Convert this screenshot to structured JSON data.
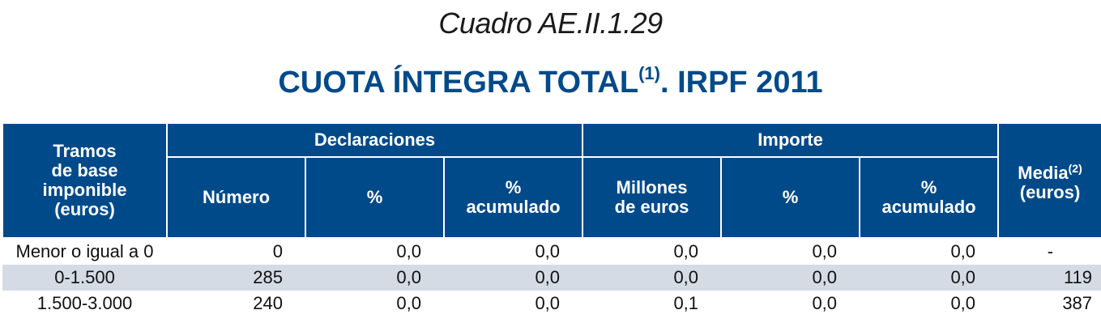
{
  "caption": "Cuadro AE.II.1.29",
  "title": {
    "main": "CUOTA ÍNTEGRA TOTAL",
    "sup": "(1)",
    "rest": ". IRPF 2011"
  },
  "headers": {
    "tramos": [
      "Tramos",
      "de base",
      "imponible",
      "(euros)"
    ],
    "declaraciones": "Declaraciones",
    "importe": "Importe",
    "media": "Media",
    "media_sup": "(2)",
    "media_unit": "(euros)",
    "numero": "Número",
    "pct": "%",
    "pct_acum_1": "%",
    "pct_acum_2": "acumulado",
    "millones_1": "Millones",
    "millones_2": "de euros"
  },
  "rows": [
    {
      "tramo": "Menor o igual a 0",
      "numero": "0",
      "pct": "0,0",
      "pct_acum": "0,0",
      "millones": "0,0",
      "imp_pct": "0,0",
      "imp_pct_acum": "0,0",
      "media": "-"
    },
    {
      "tramo": "0-1.500",
      "numero": "285",
      "pct": "0,0",
      "pct_acum": "0,0",
      "millones": "0,0",
      "imp_pct": "0,0",
      "imp_pct_acum": "0,0",
      "media": "119"
    },
    {
      "tramo": "1.500-3.000",
      "numero": "240",
      "pct": "0,0",
      "pct_acum": "0,0",
      "millones": "0,1",
      "imp_pct": "0,0",
      "imp_pct_acum": "0,0",
      "media": "387"
    }
  ]
}
